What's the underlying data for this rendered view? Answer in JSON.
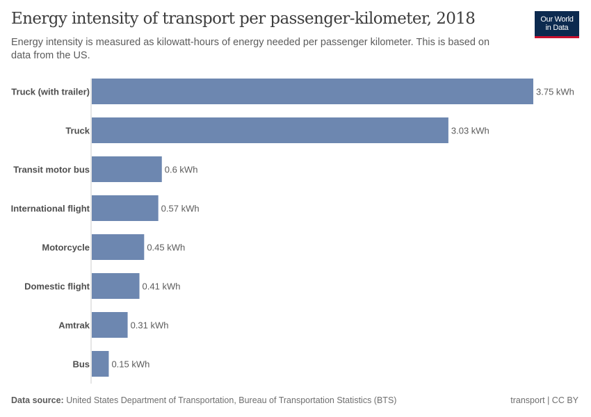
{
  "title": "Energy intensity of transport per passenger-kilometer, 2018",
  "subtitle": "Energy intensity is measured as kilowatt-hours of energy needed per passenger kilometer. This is based on data from the US.",
  "logo": {
    "line1": "Our World",
    "line2": "in Data",
    "bg_color": "#0c2a4f",
    "accent_color": "#c8102e"
  },
  "footer": {
    "source_label": "Data source:",
    "source_text": "United States Department of Transportation, Bureau of Transportation Statistics (BTS)",
    "license": "transport | CC BY"
  },
  "chart_data": {
    "type": "bar",
    "orientation": "horizontal",
    "categories": [
      "Truck (with trailer)",
      "Truck",
      "Transit motor bus",
      "International flight",
      "Motorcycle",
      "Domestic flight",
      "Amtrak",
      "Bus"
    ],
    "values": [
      3.75,
      3.03,
      0.6,
      0.57,
      0.45,
      0.41,
      0.31,
      0.15
    ],
    "data_labels": [
      "3.75 kWh",
      "3.03 kWh",
      "0.6 kWh",
      "0.57 kWh",
      "0.45 kWh",
      "0.41 kWh",
      "0.31 kWh",
      "0.15 kWh"
    ],
    "unit": "kWh",
    "bar_color": "#6d87b0",
    "xlim": [
      0,
      3.75
    ],
    "grid": false
  }
}
